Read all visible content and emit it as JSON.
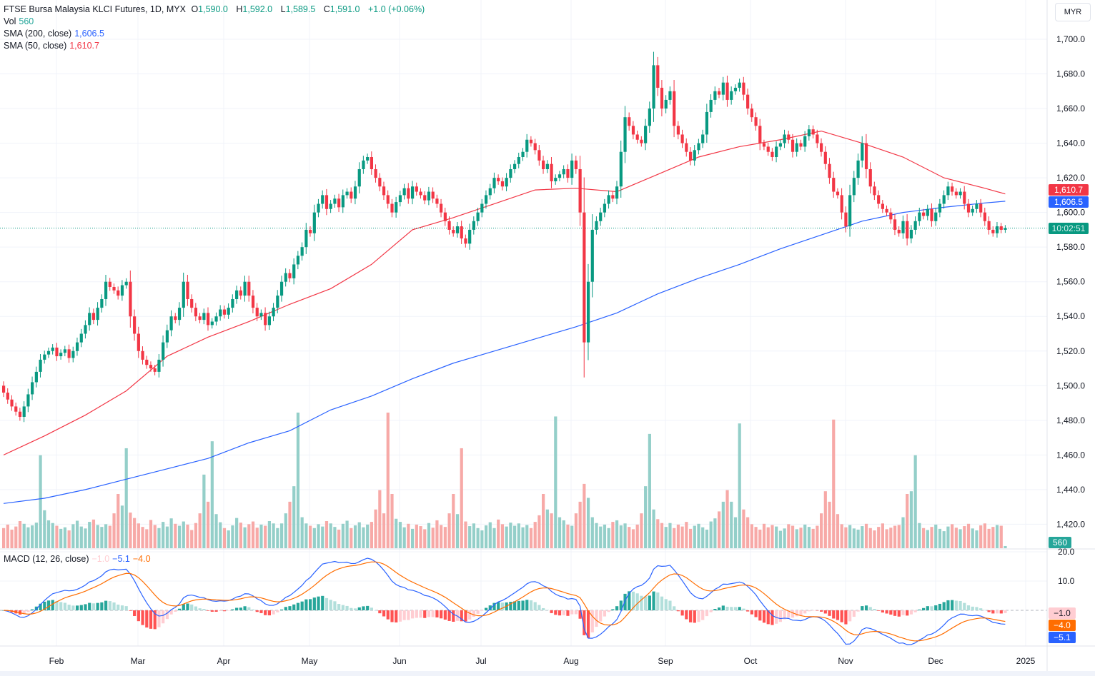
{
  "header": {
    "symbol": "FTSE Bursa Malaysia KLCI Futures, 1D, MYX",
    "o_label": "O",
    "o": "1,590.0",
    "h_label": "H",
    "h": "1,592.0",
    "l_label": "L",
    "l": "1,589.5",
    "c_label": "C",
    "c": "1,591.0",
    "change": "+1.0 (+0.06%)"
  },
  "legends": {
    "vol_label": "Vol",
    "vol": "560",
    "sma200_label": "SMA (200, close)",
    "sma200": "1,606.5",
    "sma50_label": "SMA (50, close)",
    "sma50": "1,610.7",
    "macd_label": "MACD (12, 26, close)",
    "macd_hist": "−1.0",
    "macd": "−5.1",
    "macd_signal": "−4.0"
  },
  "currency_button": "MYR",
  "tags": {
    "sma50": "1,610.7",
    "sma200": "1,606.5",
    "countdown": "10:02:51",
    "volume": "560",
    "macd_hist": "−1.0",
    "macd_signal": "−4.0",
    "macd": "−5.1"
  },
  "colors": {
    "up": "#089981",
    "down": "#f23645",
    "vol_up": "#94cfc9",
    "vol_down": "#f7a9a7",
    "sma200": "#2962ff",
    "sma50": "#f23645",
    "macd": "#2962ff",
    "signal": "#ff6d00",
    "hist_up_strong": "#26a69a",
    "hist_up_weak": "#b2dfdb",
    "hist_down_strong": "#ff5252",
    "hist_down_weak": "#ffcdd2"
  },
  "chart_data": {
    "type": "candlestick",
    "price_axis": {
      "ticks": [
        "1,700.0",
        "1,680.0",
        "1,660.0",
        "1,640.0",
        "1,620.0",
        "1,600.0",
        "1,580.0",
        "1,560.0",
        "1,540.0",
        "1,520.0",
        "1,500.0",
        "1,480.0",
        "1,460.0",
        "1,440.0",
        "1,420.0"
      ],
      "range": [
        1420,
        1700
      ]
    },
    "macd_axis": {
      "ticks": [
        "20.0",
        "10.0"
      ],
      "range": [
        -12,
        20
      ]
    },
    "time_axis": [
      "Feb",
      "Mar",
      "Apr",
      "May",
      "Jun",
      "Jul",
      "Aug",
      "Sep",
      "Oct",
      "Nov",
      "Dec",
      "2025"
    ],
    "last_price": 1591.0,
    "first_open": 1500,
    "close": [
      1496,
      1492,
      1488,
      1485,
      1482,
      1488,
      1495,
      1502,
      1508,
      1515,
      1518,
      1520,
      1522,
      1517,
      1519,
      1521,
      1516,
      1520,
      1525,
      1530,
      1535,
      1542,
      1538,
      1545,
      1550,
      1560,
      1557,
      1555,
      1552,
      1558,
      1560,
      1540,
      1530,
      1520,
      1515,
      1512,
      1510,
      1508,
      1515,
      1525,
      1532,
      1540,
      1538,
      1545,
      1560,
      1550,
      1545,
      1540,
      1538,
      1542,
      1535,
      1537,
      1540,
      1544,
      1541,
      1545,
      1550,
      1555,
      1552,
      1560,
      1552,
      1545,
      1540,
      1542,
      1535,
      1540,
      1545,
      1552,
      1560,
      1565,
      1562,
      1570,
      1575,
      1580,
      1590,
      1588,
      1600,
      1605,
      1610,
      1602,
      1605,
      1608,
      1603,
      1610,
      1612,
      1608,
      1615,
      1625,
      1630,
      1632,
      1625,
      1620,
      1615,
      1610,
      1605,
      1600,
      1606,
      1610,
      1614,
      1608,
      1615,
      1612,
      1610,
      1607,
      1612,
      1608,
      1605,
      1600,
      1595,
      1590,
      1588,
      1592,
      1585,
      1582,
      1590,
      1595,
      1600,
      1605,
      1610,
      1614,
      1620,
      1618,
      1615,
      1620,
      1625,
      1628,
      1632,
      1635,
      1642,
      1640,
      1636,
      1630,
      1625,
      1628,
      1618,
      1620,
      1622,
      1625,
      1620,
      1630,
      1625,
      1600,
      1525,
      1560,
      1590,
      1595,
      1600,
      1605,
      1610,
      1608,
      1615,
      1635,
      1655,
      1650,
      1645,
      1642,
      1640,
      1650,
      1660,
      1685,
      1672,
      1660,
      1665,
      1670,
      1650,
      1645,
      1640,
      1635,
      1630,
      1636,
      1640,
      1645,
      1658,
      1665,
      1670,
      1668,
      1675,
      1665,
      1670,
      1672,
      1675,
      1668,
      1660,
      1655,
      1650,
      1640,
      1638,
      1635,
      1632,
      1638,
      1640,
      1645,
      1642,
      1635,
      1640,
      1638,
      1644,
      1648,
      1645,
      1640,
      1635,
      1628,
      1620,
      1612,
      1610,
      1600,
      1592,
      1610,
      1620,
      1630,
      1640,
      1625,
      1615,
      1610,
      1605,
      1602,
      1600,
      1596,
      1590,
      1588,
      1595,
      1585,
      1590,
      1595,
      1600,
      1598,
      1602,
      1595,
      1600,
      1605,
      1610,
      1615,
      1612,
      1610,
      1612,
      1605,
      1600,
      1602,
      1605,
      1600,
      1595,
      1590,
      1588,
      1592,
      1590,
      1591
    ],
    "volume": [
      5200,
      6100,
      4800,
      5600,
      7000,
      6300,
      5400,
      5900,
      6600,
      24000,
      9800,
      7200,
      6500,
      5800,
      5000,
      5400,
      4600,
      6200,
      7100,
      5600,
      5100,
      6800,
      7400,
      6000,
      5500,
      6200,
      5800,
      9000,
      14000,
      11000,
      25800,
      9200,
      7800,
      6400,
      5500,
      4900,
      7300,
      6000,
      5200,
      6800,
      5600,
      7700,
      6300,
      5800,
      6900,
      6100,
      4700,
      6500,
      9000,
      19000,
      12000,
      27600,
      8800,
      6700,
      5200,
      4600,
      5900,
      7800,
      6600,
      5400,
      6200,
      6900,
      5300,
      6100,
      5800,
      7000,
      6400,
      5200,
      6400,
      9000,
      12000,
      16000,
      35000,
      8000,
      6400,
      5800,
      5200,
      6200,
      5600,
      7000,
      6400,
      5500,
      4800,
      6300,
      7100,
      5200,
      5900,
      6700,
      5400,
      6100,
      6800,
      10000,
      15000,
      9000,
      35000,
      14000,
      7600,
      6800,
      5400,
      6300,
      5000,
      6100,
      5700,
      4900,
      6500,
      5300,
      7200,
      6000,
      5500,
      9000,
      14000,
      8800,
      25800,
      6900,
      5700,
      6400,
      5200,
      4600,
      5900,
      6700,
      5200,
      7400,
      6200,
      5600,
      6600,
      5800,
      6400,
      5400,
      6000,
      5200,
      6800,
      8500,
      14000,
      10000,
      9000,
      34000,
      8000,
      7200,
      6100,
      5800,
      9000,
      12000,
      16600,
      13000,
      8000,
      6500,
      5600,
      6100,
      5200,
      6800,
      7200,
      5900,
      6400,
      5500,
      4900,
      6100,
      9000,
      16000,
      29500,
      10000,
      7500,
      6500,
      5500,
      6500,
      5200,
      6100,
      5600,
      6800,
      5000,
      5800,
      6300,
      5400,
      4800,
      6900,
      7700,
      9500,
      12000,
      15000,
      12000,
      8000,
      32200,
      10000,
      8000,
      6200,
      5500,
      4800,
      6300,
      5400,
      6000,
      5600,
      4500,
      5100,
      6200,
      5800,
      4900,
      5300,
      6100,
      5500,
      5000,
      5800,
      9000,
      14700,
      12000,
      33200,
      8800,
      6200,
      5400,
      6000,
      5100,
      4800,
      5700,
      6300,
      5200,
      4600,
      5500,
      6400,
      4900,
      5300,
      5800,
      6000,
      8000,
      14000,
      14700,
      24000,
      6500,
      5200,
      4700,
      5500,
      6100,
      5000,
      4400,
      5600,
      6200,
      5300,
      4900,
      5700,
      6300,
      5100,
      4600,
      5900,
      6400,
      5000,
      5500,
      6000,
      5800,
      560
    ],
    "sma50_sampled_every_10": [
      1460,
      1471,
      1483,
      1497,
      1517,
      1528,
      1537,
      1547,
      1556,
      1570,
      1590,
      1597,
      1605,
      1613,
      1614,
      1612,
      1622,
      1632,
      1638,
      1642,
      1647,
      1640,
      1632,
      1620,
      1614,
      1610.7
    ],
    "sma200_sampled_every_10": [
      1432,
      1435,
      1440,
      1446,
      1452,
      1458,
      1467,
      1474,
      1486,
      1494,
      1504,
      1513,
      1520,
      1527,
      1534,
      1542,
      1553,
      1562,
      1570,
      1579,
      1587,
      1595,
      1600,
      1603,
      1605.5,
      1606.5
    ]
  }
}
